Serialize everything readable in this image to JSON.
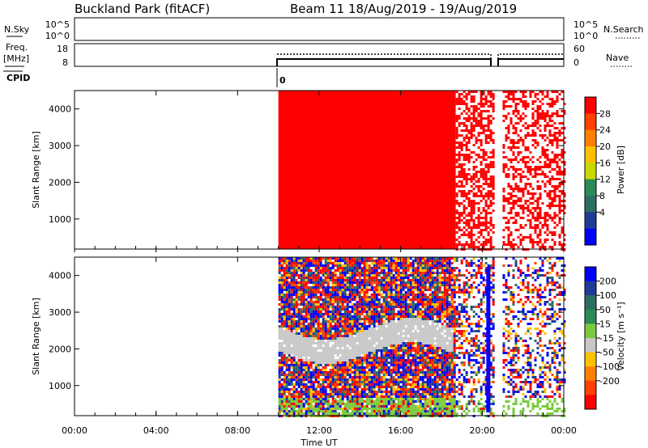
{
  "header": {
    "station": "Buckland Park (fitACF)",
    "beam_date": "Beam 11 18/Aug/2019 - 19/Aug/2019"
  },
  "nsky_panel": {
    "left_label": "N.Sky",
    "right_label": "N.Search",
    "left_ticks": [
      "10^5",
      "10^0"
    ],
    "right_ticks": [
      "10^5",
      "10^0"
    ]
  },
  "freq_panel": {
    "left_label_1": "Freq.",
    "left_label_2": "[MHz]",
    "right_label": "Nave",
    "left_ticks": [
      "18",
      "8"
    ],
    "right_ticks": [
      "60",
      "0"
    ]
  },
  "cpid": {
    "label": "CPID",
    "value": "0"
  },
  "colorbars": {
    "power": {
      "label": "Power [dB]",
      "ticks": [
        "28",
        "24",
        "20",
        "16",
        "12",
        "8",
        "4"
      ],
      "colors": [
        "#ff0000",
        "#ff4000",
        "#ff8000",
        "#ffc000",
        "#c8d800",
        "#2e8b57",
        "#2d6e60",
        "#1e3c96",
        "#0000ff"
      ]
    },
    "velocity": {
      "label": "Velocity [m s⁻¹]",
      "ticks": [
        "200",
        "100",
        "50",
        "15",
        "-15",
        "-50",
        "-100",
        "-200"
      ],
      "colors": [
        "#0000ff",
        "#1e3c96",
        "#2d6e60",
        "#2e8b57",
        "#7acb3c",
        "#c8c8c8",
        "#ffc000",
        "#ff8000",
        "#ff4000",
        "#ff0000"
      ]
    }
  },
  "colors": {
    "power_echo": "#ff0000",
    "velocity_gray": "#c8c8c8",
    "velocity_green": "#7acb3c",
    "velocity_blue": "#0000ff",
    "velocity_red": "#ff0000"
  },
  "chart_data": [
    {
      "type": "heatmap",
      "panel": "power",
      "ylabel": "Slant Range [km]",
      "yticks": [
        "1000",
        "2000",
        "3000",
        "4000"
      ],
      "xlim": [
        "00:00",
        "24:00"
      ],
      "ylim": [
        180,
        4500
      ],
      "data_segments": [
        {
          "start": "10:00",
          "end": "20:30",
          "value": "red"
        },
        {
          "start": "21:00",
          "end": "24:00",
          "value": "red (sparse)"
        }
      ]
    },
    {
      "type": "heatmap",
      "panel": "velocity",
      "ylabel": "Slant Range [km]",
      "xlabel": "Time UT",
      "yticks": [
        "1000",
        "2000",
        "3000",
        "4000"
      ],
      "xticks": [
        "00:00",
        "04:00",
        "08:00",
        "12:00",
        "16:00",
        "20:00",
        "00:00"
      ],
      "xlim": [
        "00:00",
        "24:00"
      ],
      "ylim": [
        180,
        4500
      ],
      "data_segments": [
        {
          "start": "10:00",
          "end": "20:30"
        },
        {
          "start": "21:00",
          "end": "24:00"
        }
      ]
    }
  ]
}
